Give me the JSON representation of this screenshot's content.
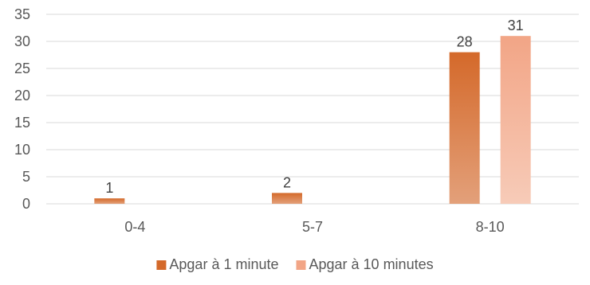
{
  "chart_data": {
    "type": "bar",
    "title": "",
    "xlabel": "",
    "ylabel": "",
    "categories": [
      "0-4",
      "5-7",
      "8-10"
    ],
    "series": [
      {
        "name": "Apgar à 1 minute",
        "values": [
          1,
          2,
          28
        ],
        "color": "#d4692a",
        "gradient_to": "#e3a07a"
      },
      {
        "name": "Apgar à 10 minutes",
        "values": [
          null,
          null,
          31
        ],
        "color": "#f2a586",
        "gradient_to": "#f7cbb8"
      }
    ],
    "ylim": [
      0,
      35
    ],
    "yticks": [
      0,
      5,
      10,
      15,
      20,
      25,
      30,
      35
    ],
    "grid": true,
    "legend_position": "bottom",
    "data_labels": true
  }
}
